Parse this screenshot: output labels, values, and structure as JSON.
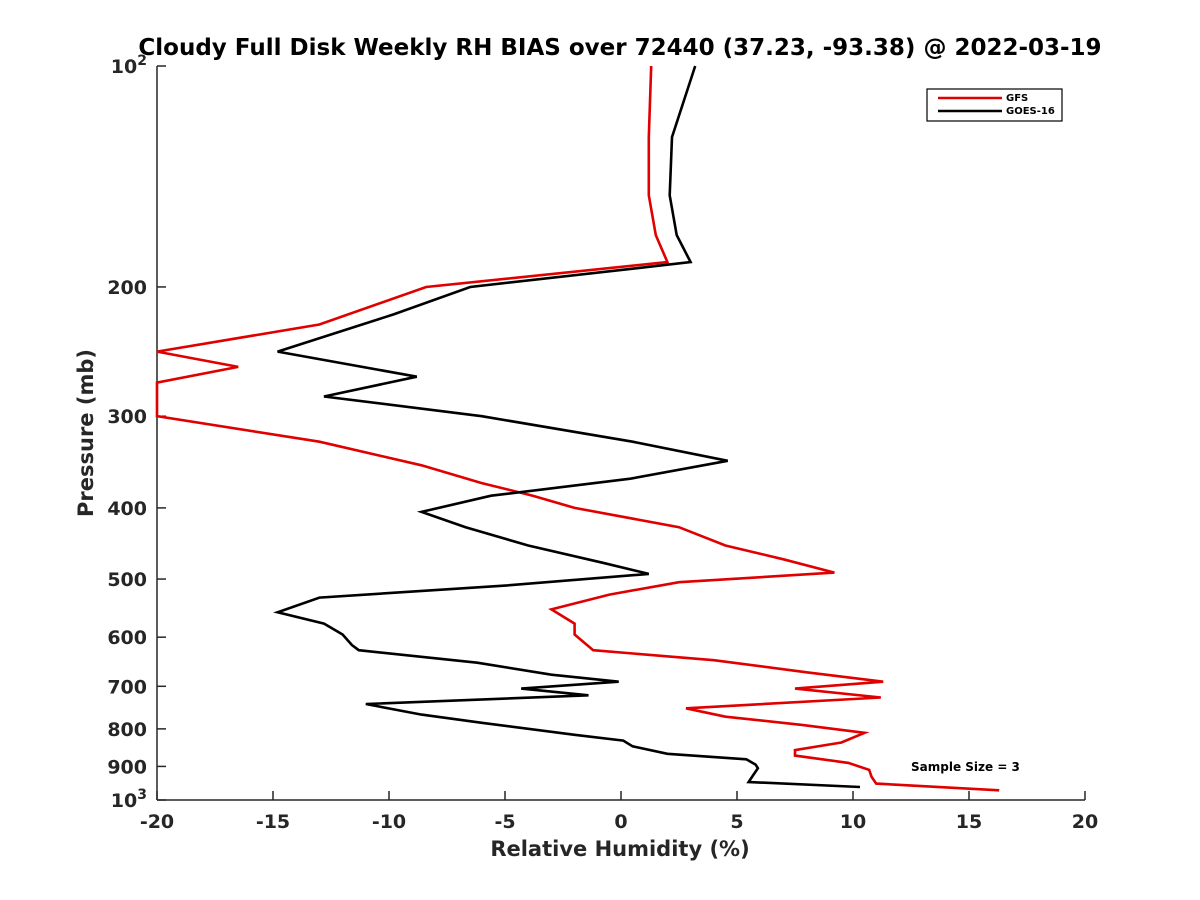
{
  "chart_data": {
    "type": "line",
    "title": "Cloudy Full Disk Weekly RH BIAS over 72440 (37.23, -93.38) @ 2022-03-19",
    "xlabel": "Relative Humidity (%)",
    "ylabel": "Pressure (mb)",
    "xlim": [
      -20,
      20
    ],
    "ylim": [
      100,
      1000
    ],
    "y_scale": "log",
    "y_reversed": true,
    "grid": false,
    "legend_position": "top-right",
    "x_ticks": [
      "-20",
      "-15",
      "-10",
      "-5",
      "0",
      "5",
      "10",
      "15",
      "20"
    ],
    "y_ticks": [
      {
        "value": 100,
        "base": "10",
        "exp": "2"
      },
      {
        "value": 200,
        "label": "200"
      },
      {
        "value": 300,
        "label": "300"
      },
      {
        "value": 400,
        "label": "400"
      },
      {
        "value": 500,
        "label": "500"
      },
      {
        "value": 600,
        "label": "600"
      },
      {
        "value": 700,
        "label": "700"
      },
      {
        "value": 800,
        "label": "800"
      },
      {
        "value": 900,
        "label": "900"
      },
      {
        "value": 1000,
        "base": "10",
        "exp": "3"
      }
    ],
    "series": [
      {
        "name": "GFS",
        "color": "#e00000",
        "points": [
          [
            1.3,
            100
          ],
          [
            1.2,
            125
          ],
          [
            1.2,
            150
          ],
          [
            1.5,
            170
          ],
          [
            2.0,
            185
          ],
          [
            -8.4,
            200
          ],
          [
            -13.0,
            225
          ],
          [
            -20.0,
            245
          ],
          [
            -16.5,
            257
          ],
          [
            -20.0,
            270
          ],
          [
            -20.0,
            300
          ],
          [
            -13.0,
            325
          ],
          [
            -8.6,
            350
          ],
          [
            -6.0,
            370
          ],
          [
            -3.8,
            385
          ],
          [
            -2.0,
            400
          ],
          [
            2.5,
            425
          ],
          [
            4.5,
            450
          ],
          [
            7.0,
            470
          ],
          [
            9.2,
            490
          ],
          [
            2.5,
            505
          ],
          [
            -0.5,
            525
          ],
          [
            -3.0,
            550
          ],
          [
            -2.0,
            575
          ],
          [
            -2.0,
            595
          ],
          [
            -1.6,
            610
          ],
          [
            -1.2,
            625
          ],
          [
            4.0,
            645
          ],
          [
            8.0,
            670
          ],
          [
            11.3,
            690
          ],
          [
            7.5,
            705
          ],
          [
            11.2,
            725
          ],
          [
            2.8,
            750
          ],
          [
            4.5,
            770
          ],
          [
            7.8,
            790
          ],
          [
            10.5,
            810
          ],
          [
            9.5,
            835
          ],
          [
            7.5,
            855
          ],
          [
            7.5,
            870
          ],
          [
            9.8,
            890
          ],
          [
            10.7,
            910
          ],
          [
            10.8,
            930
          ],
          [
            11.0,
            950
          ],
          [
            16.3,
            970
          ]
        ]
      },
      {
        "name": "GOES-16",
        "color": "#000000",
        "points": [
          [
            3.2,
            100
          ],
          [
            2.2,
            125
          ],
          [
            2.1,
            150
          ],
          [
            2.4,
            170
          ],
          [
            3.0,
            185
          ],
          [
            -6.5,
            200
          ],
          [
            -9.8,
            218
          ],
          [
            -14.8,
            245
          ],
          [
            -8.8,
            265
          ],
          [
            -12.8,
            282
          ],
          [
            -6.0,
            300
          ],
          [
            0.5,
            325
          ],
          [
            4.6,
            345
          ],
          [
            0.4,
            365
          ],
          [
            -5.6,
            385
          ],
          [
            -8.6,
            405
          ],
          [
            -6.7,
            425
          ],
          [
            -4.0,
            450
          ],
          [
            -0.8,
            475
          ],
          [
            1.2,
            492
          ],
          [
            -4.9,
            510
          ],
          [
            -13.0,
            530
          ],
          [
            -14.8,
            555
          ],
          [
            -12.8,
            575
          ],
          [
            -12.0,
            595
          ],
          [
            -11.6,
            615
          ],
          [
            -11.3,
            625
          ],
          [
            -6.2,
            650
          ],
          [
            -3.0,
            675
          ],
          [
            -0.1,
            690
          ],
          [
            -4.3,
            705
          ],
          [
            -1.4,
            720
          ],
          [
            -11.0,
            740
          ],
          [
            -8.6,
            765
          ],
          [
            -6.0,
            785
          ],
          [
            -2.0,
            815
          ],
          [
            0.1,
            830
          ],
          [
            0.5,
            845
          ],
          [
            2.0,
            865
          ],
          [
            5.4,
            880
          ],
          [
            5.8,
            895
          ],
          [
            5.9,
            905
          ],
          [
            5.7,
            925
          ],
          [
            5.5,
            945
          ],
          [
            10.3,
            960
          ]
        ]
      }
    ],
    "annotation": "Sample Size = 3"
  }
}
